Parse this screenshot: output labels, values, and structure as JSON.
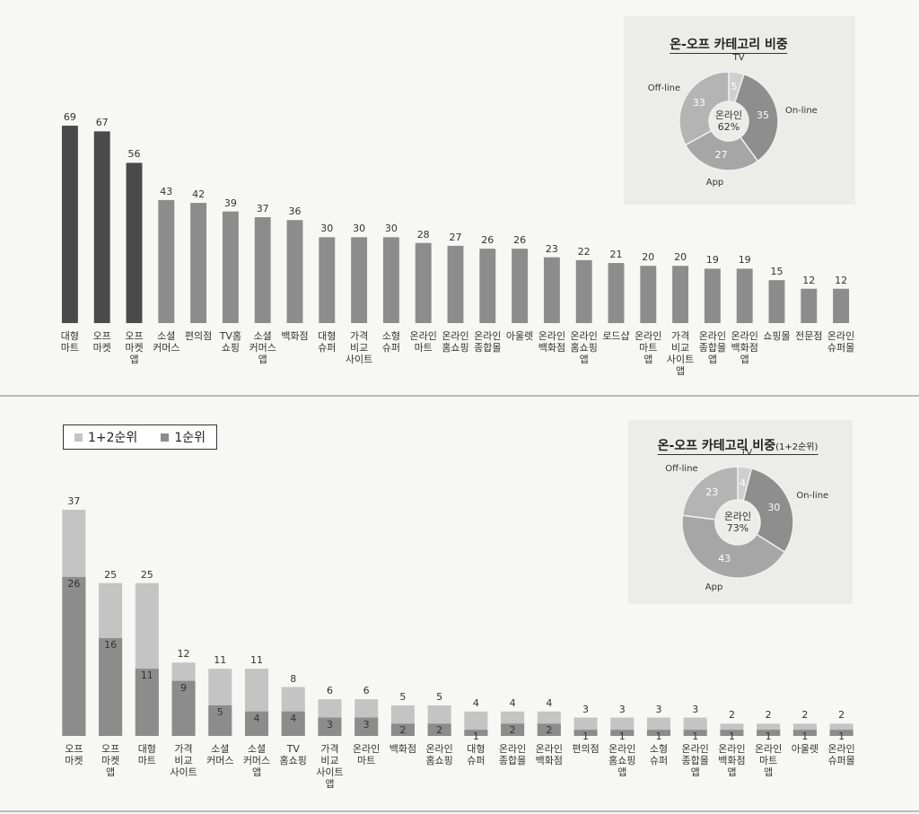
{
  "chart_data": [
    {
      "type": "bar",
      "categories": [
        "대형\n마트",
        "오프\n마켓",
        "오프\n마켓\n앱",
        "소셜\n커머스",
        "편의점",
        "TV홈\n쇼핑",
        "소셜\n커머스\n앱",
        "백화점",
        "대형\n슈퍼",
        "가격\n비교\n사이트",
        "소형\n슈퍼",
        "온라인\n마트",
        "온라인\n홈쇼핑",
        "온라인\n종합몰",
        "아울렛",
        "온라인\n백화점",
        "온라인\n홈쇼핑\n앱",
        "로드샵",
        "온라인\n마트\n앱",
        "가격\n비교\n사이트\n앱",
        "온라인\n종합몰\n앱",
        "온라인\n백화점\n앱",
        "쇼핑몰",
        "전문점",
        "온라인\n슈퍼몰"
      ],
      "values": [
        69,
        67,
        56,
        43,
        42,
        39,
        37,
        36,
        30,
        30,
        30,
        28,
        27,
        26,
        26,
        23,
        22,
        21,
        20,
        20,
        19,
        19,
        15,
        12,
        12
      ],
      "colors": [
        "#4a4a4a",
        "#4a4a4a",
        "#4a4a4a",
        "#8c8c8c",
        "#8c8c8c",
        "#8c8c8c",
        "#8c8c8c",
        "#8c8c8c",
        "#8c8c8c",
        "#8c8c8c",
        "#8c8c8c",
        "#8c8c8c",
        "#8c8c8c",
        "#8c8c8c",
        "#8c8c8c",
        "#8c8c8c",
        "#8c8c8c",
        "#8c8c8c",
        "#8c8c8c",
        "#8c8c8c",
        "#8c8c8c",
        "#8c8c8c",
        "#8c8c8c",
        "#8c8c8c",
        "#8c8c8c"
      ]
    },
    {
      "type": "pie",
      "title": "온-오프 카테고리 비중",
      "labels": [
        "TV",
        "On-line",
        "App",
        "Off-line"
      ],
      "values": [
        5,
        35,
        27,
        33
      ],
      "colors": [
        "#cfcfcf",
        "#8e8e8e",
        "#a6a6a6",
        "#b4b4b4"
      ],
      "center_text": "온라인\n62%"
    },
    {
      "type": "bar",
      "categories": [
        "오프\n마켓",
        "오프\n마켓\n앱",
        "대형\n마트",
        "가격\n비교\n사이트",
        "소셜\n커머스",
        "소셜\n커머스\n앱",
        "TV\n홈쇼핑",
        "가격\n비교\n사이트\n앱",
        "온라인\n마트",
        "백화점",
        "온라인\n홈쇼핑",
        "대형\n슈퍼",
        "온라인\n종합몰",
        "온라인\n백화점",
        "편의점",
        "온라인\n홈쇼핑\n앱",
        "소형\n슈퍼",
        "온라인\n종합몰\n앱",
        "온라인\n백화점\n앱",
        "온라인\n마트\n앱",
        "아울렛",
        "온라인\n슈퍼몰"
      ],
      "series": [
        {
          "name": "1+2순위",
          "color": "#c4c4c4",
          "values": [
            37,
            25,
            25,
            12,
            11,
            11,
            8,
            6,
            6,
            5,
            5,
            4,
            4,
            4,
            3,
            3,
            3,
            3,
            2,
            2,
            2,
            2
          ]
        },
        {
          "name": "1순위",
          "color": "#8c8c8c",
          "values": [
            26,
            16,
            11,
            9,
            5,
            4,
            4,
            3,
            3,
            2,
            2,
            1,
            2,
            2,
            1,
            1,
            1,
            1,
            1,
            1,
            1,
            1
          ]
        }
      ]
    },
    {
      "type": "pie",
      "title": "온-오프 카테고리 비중",
      "subtitle": "(1+2순위)",
      "labels": [
        "TV",
        "On-line",
        "App",
        "Off-line"
      ],
      "values": [
        4,
        30,
        43,
        23
      ],
      "colors": [
        "#cfcfcf",
        "#8e8e8e",
        "#a6a6a6",
        "#b4b4b4"
      ],
      "center_text": "온라인\n73%"
    }
  ]
}
